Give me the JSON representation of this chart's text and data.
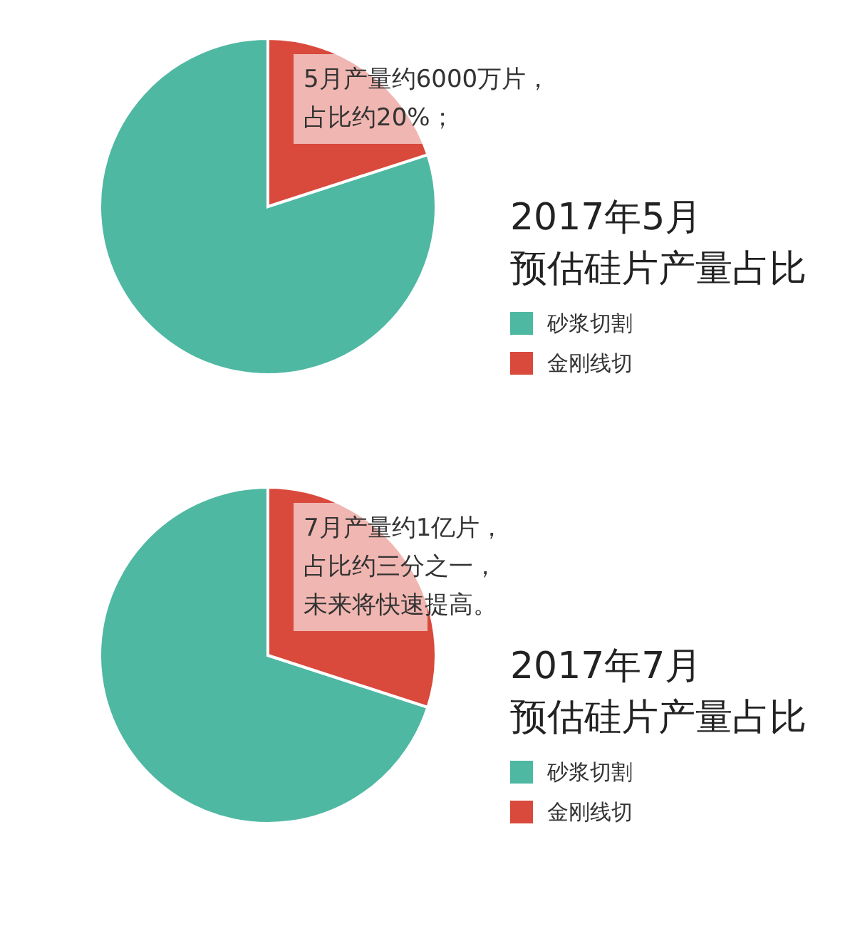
{
  "chart_data": [
    {
      "type": "pie",
      "title": "2017年5月",
      "subtitle": "预估硅片产量占比",
      "categories": [
        "砂浆切割",
        "金刚线切"
      ],
      "values": [
        80,
        20
      ],
      "colors": [
        "#4fb8a2",
        "#d9493c"
      ],
      "legend": "right",
      "annotations": [
        "5月产量约6000万片，",
        "占比约20%；"
      ]
    },
    {
      "type": "pie",
      "title": "2017年7月",
      "subtitle": "预估硅片产量占比",
      "categories": [
        "砂浆切割",
        "金刚线切"
      ],
      "values": [
        70,
        30
      ],
      "colors": [
        "#4fb8a2",
        "#d9493c"
      ],
      "legend": "right",
      "annotations": [
        "7月产量约1亿片，",
        "占比约三分之一，",
        "未来将快速提高。"
      ]
    }
  ]
}
